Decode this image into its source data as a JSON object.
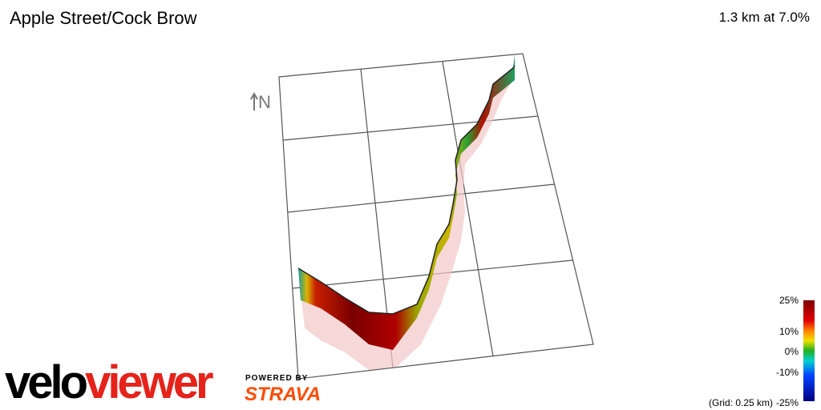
{
  "header": {
    "title": "Apple Street/Cock Brow",
    "summary": "1.3 km at 7.0%"
  },
  "compass": {
    "label": "N"
  },
  "legend": {
    "labels": [
      "25%",
      "10%",
      "0%",
      "-10%",
      "-25%"
    ],
    "note": "(Grid: 0.25 km)"
  },
  "branding": {
    "logo_part1": "velo",
    "logo_part2": "viewer",
    "powered": "POWERED BY",
    "strava": "STRAVA"
  }
}
